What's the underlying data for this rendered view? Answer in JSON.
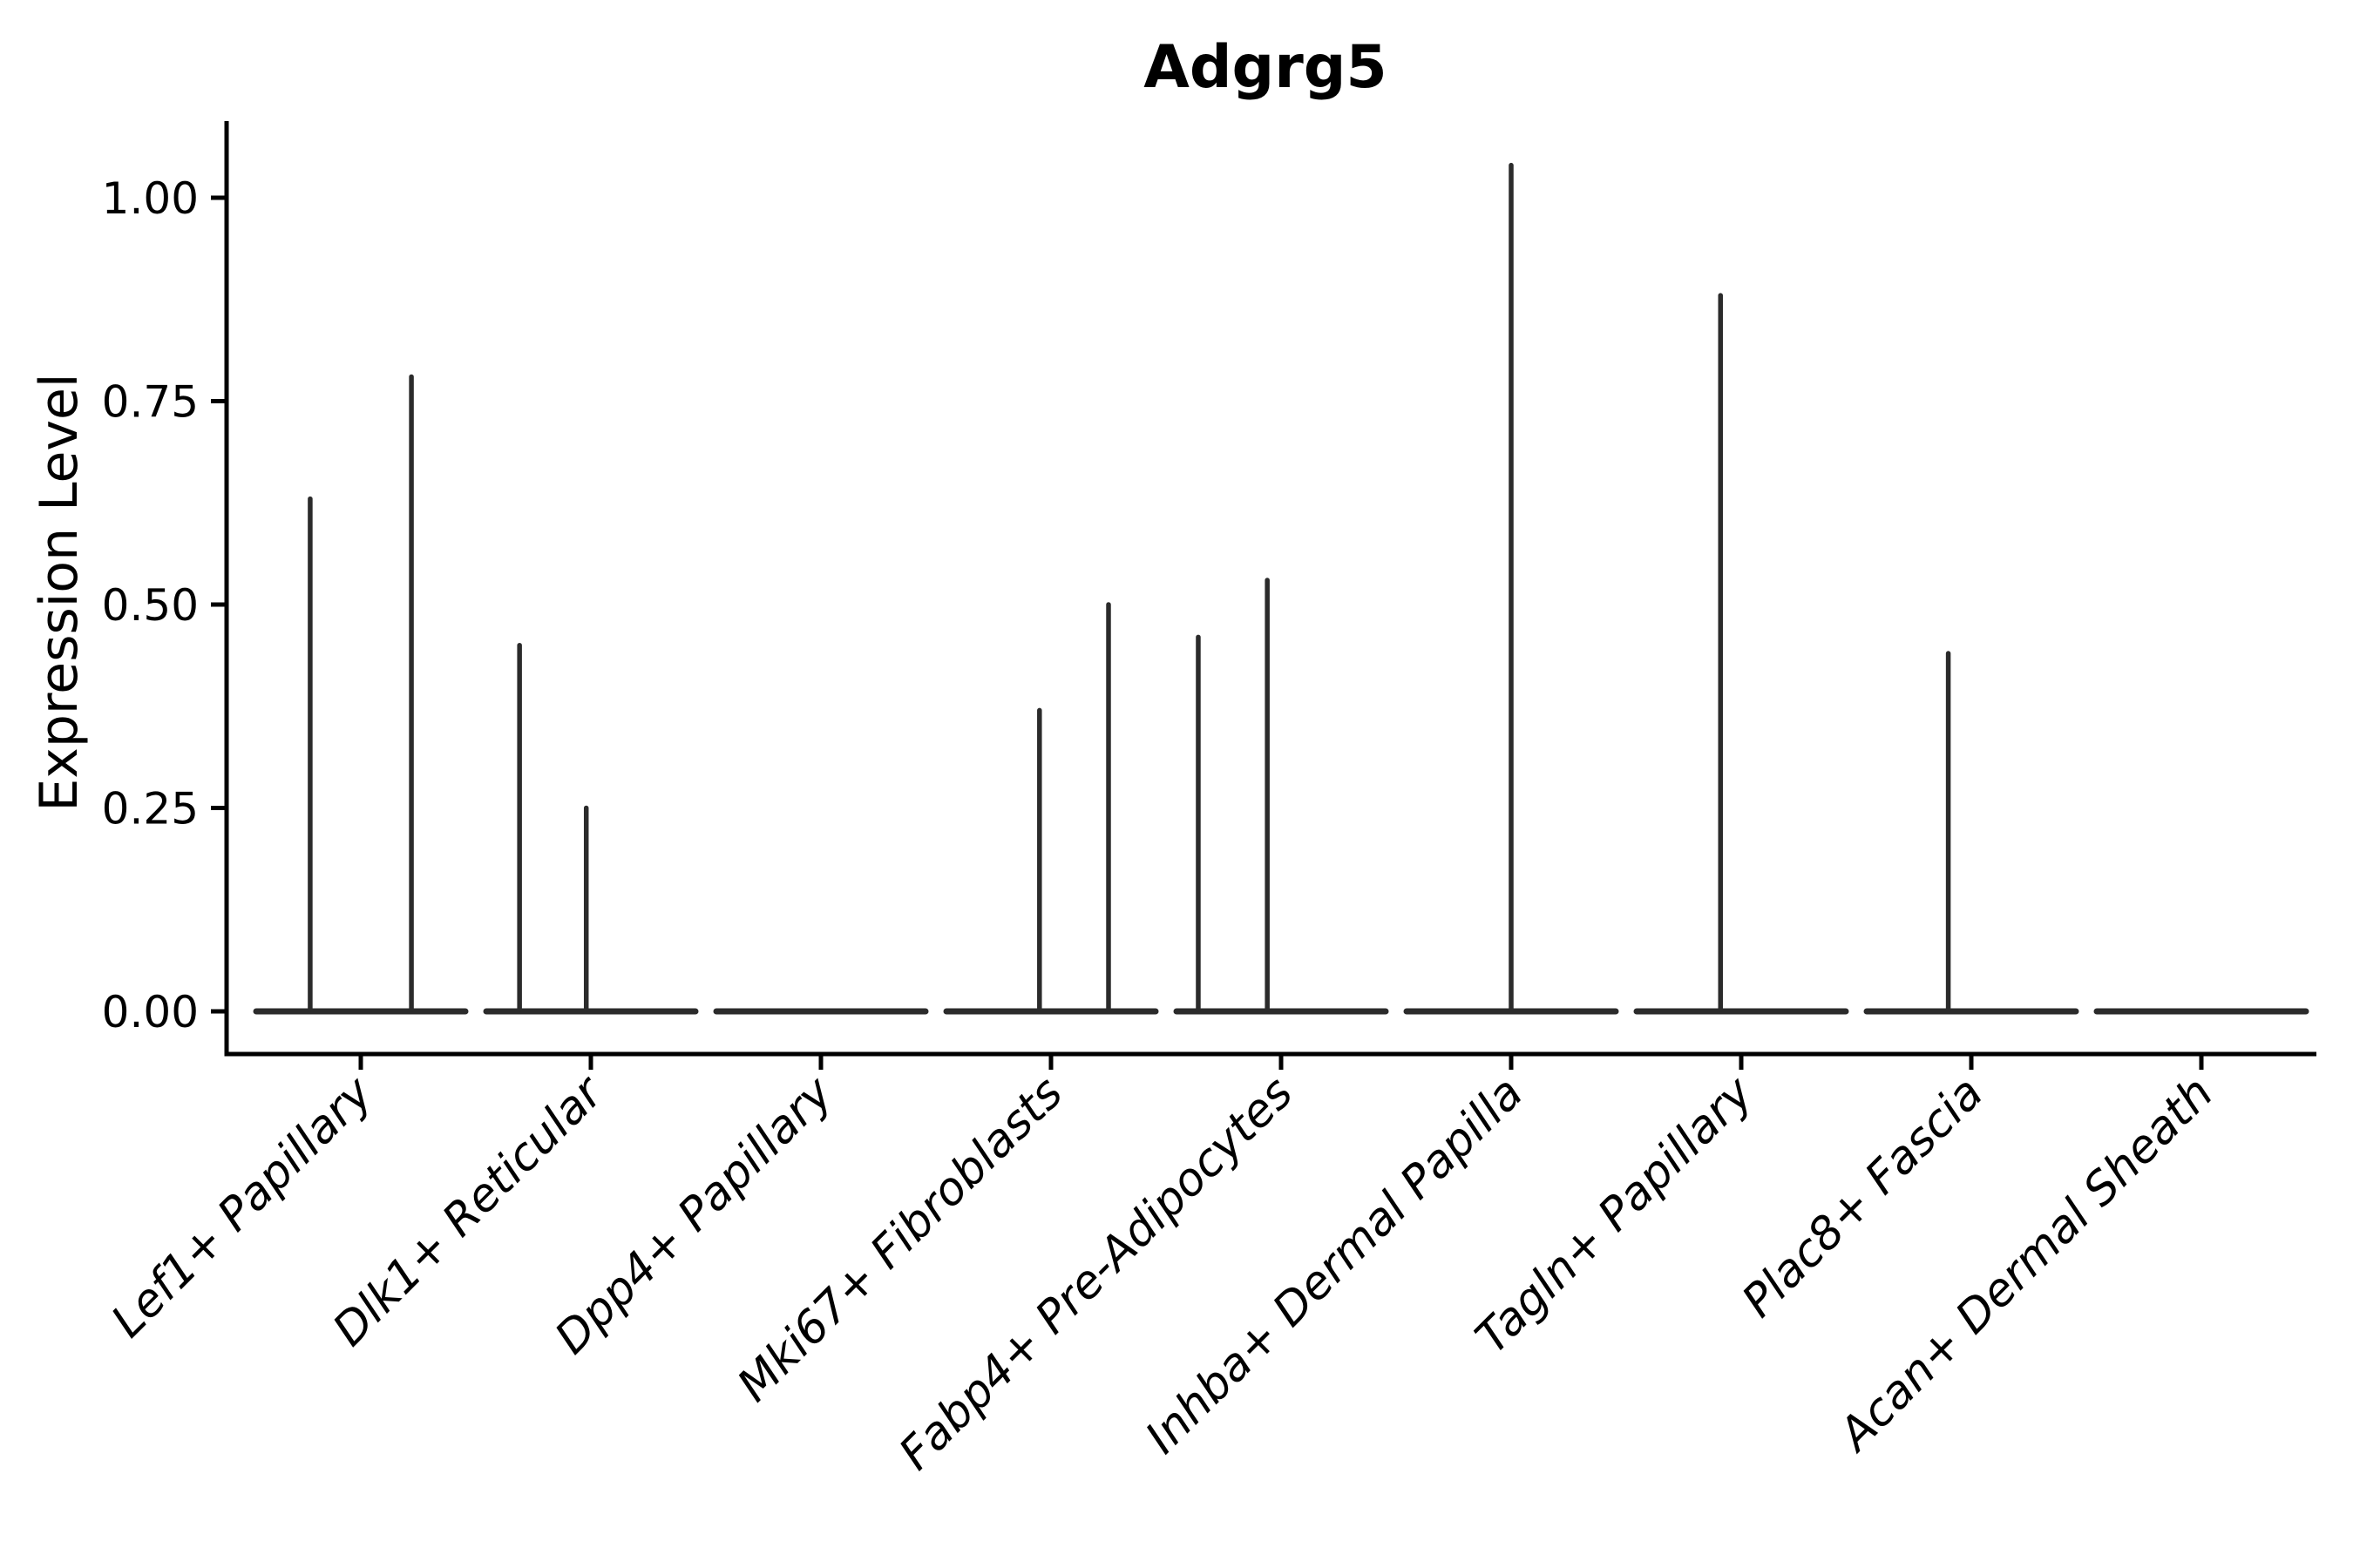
{
  "chart_data": {
    "type": "violin",
    "title": "Adgrg5",
    "xlabel": "",
    "ylabel": "Expression Level",
    "ylim": [
      -0.05,
      1.09
    ],
    "grid": false,
    "legend": "none",
    "yticks": [
      {
        "value": 1.0,
        "label": "1.00"
      },
      {
        "value": 0.75,
        "label": "0.75"
      },
      {
        "value": 0.5,
        "label": "0.50"
      },
      {
        "value": 0.25,
        "label": "0.25"
      },
      {
        "value": 0.0,
        "label": "0.00"
      }
    ],
    "description": "Collapsed violin plot of Adgrg5 expression per fibroblast cluster; each violin is a flat line at 0 with thin density spikes at expressing-cell values",
    "categories": [
      {
        "label": "Lef1+ Papillary",
        "baseline": 0.0,
        "spikes": [
          {
            "value": 0.63,
            "dx": -0.22
          },
          {
            "value": 0.78,
            "dx": 0.22
          }
        ]
      },
      {
        "label": "Dlk1+ Reticular",
        "baseline": 0.0,
        "spikes": [
          {
            "value": 0.45,
            "dx": -0.31
          },
          {
            "value": 0.25,
            "dx": -0.02
          }
        ]
      },
      {
        "label": "Dpp4+ Papillary",
        "baseline": 0.0,
        "spikes": []
      },
      {
        "label": "Mki67+ Fibroblasts",
        "baseline": 0.0,
        "spikes": [
          {
            "value": 0.37,
            "dx": -0.05
          },
          {
            "value": 0.5,
            "dx": 0.25
          }
        ]
      },
      {
        "label": "Fabp4+ Pre-Adipocytes",
        "baseline": 0.0,
        "spikes": [
          {
            "value": 0.46,
            "dx": -0.36
          },
          {
            "value": 0.53,
            "dx": -0.06
          }
        ]
      },
      {
        "label": "Inhba+ Dermal Papilla",
        "baseline": 0.0,
        "spikes": [
          {
            "value": 1.04,
            "dx": 0.0
          }
        ]
      },
      {
        "label": "Tagln+ Papillary",
        "baseline": 0.0,
        "spikes": [
          {
            "value": 0.88,
            "dx": -0.09
          }
        ]
      },
      {
        "label": "Plac8+ Fascia",
        "baseline": 0.0,
        "spikes": [
          {
            "value": 0.44,
            "dx": -0.1
          }
        ]
      },
      {
        "label": "Acan+ Dermal Sheath",
        "baseline": 0.0,
        "spikes": []
      }
    ],
    "colors": {
      "ink": "#000000",
      "violin": "#2b2b2b",
      "background": "#ffffff"
    }
  }
}
